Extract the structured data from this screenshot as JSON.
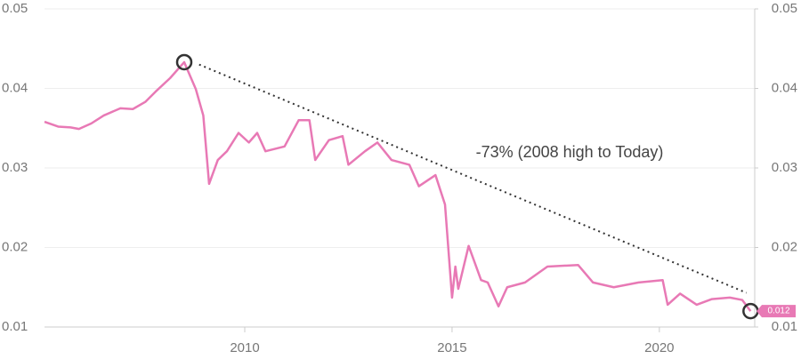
{
  "chart_data": {
    "type": "line",
    "annotation": "-73% (2008 high to Today)",
    "x": [
      2005.17,
      2005.5,
      2005.8,
      2006.0,
      2006.3,
      2006.6,
      2007.0,
      2007.3,
      2007.6,
      2007.85,
      2008.2,
      2008.54,
      2008.82,
      2009.0,
      2009.14,
      2009.35,
      2009.57,
      2009.85,
      2010.1,
      2010.3,
      2010.5,
      2010.96,
      2011.3,
      2011.56,
      2011.7,
      2012.03,
      2012.36,
      2012.5,
      2012.9,
      2013.2,
      2013.54,
      2013.97,
      2014.2,
      2014.6,
      2014.83,
      2015.0,
      2015.08,
      2015.15,
      2015.4,
      2015.7,
      2015.86,
      2016.12,
      2016.33,
      2016.76,
      2017.3,
      2018.04,
      2018.4,
      2018.9,
      2019.5,
      2020.08,
      2020.2,
      2020.5,
      2020.9,
      2021.26,
      2021.7,
      2022.0,
      2022.2
    ],
    "series": [
      {
        "color": "#e879b5",
        "values": [
          0.0358,
          0.0352,
          0.0351,
          0.0349,
          0.0356,
          0.0366,
          0.0375,
          0.0374,
          0.0383,
          0.0396,
          0.0413,
          0.0433,
          0.0399,
          0.0366,
          0.028,
          0.031,
          0.0321,
          0.0344,
          0.0332,
          0.0344,
          0.0321,
          0.0327,
          0.036,
          0.036,
          0.031,
          0.0335,
          0.034,
          0.0304,
          0.0321,
          0.0332,
          0.031,
          0.0304,
          0.0277,
          0.0291,
          0.0254,
          0.0137,
          0.0176,
          0.0148,
          0.0202,
          0.0159,
          0.0156,
          0.0126,
          0.015,
          0.0156,
          0.0176,
          0.0178,
          0.0156,
          0.015,
          0.0156,
          0.0159,
          0.0128,
          0.0142,
          0.0128,
          0.0135,
          0.0137,
          0.0134,
          0.012
        ]
      }
    ],
    "trend_line": {
      "x": [
        2008.9,
        2022.1
      ],
      "y": [
        0.043,
        0.0143
      ]
    },
    "markers": [
      {
        "x": 2008.54,
        "y": 0.0433
      },
      {
        "x": 2022.2,
        "y": 0.012
      }
    ],
    "xlim": [
      2005.17,
      2022.3
    ],
    "xticks": [
      2010,
      2015,
      2020
    ],
    "ylim": [
      0.01,
      0.05
    ],
    "yticks": [
      0.05,
      0.04,
      0.03,
      0.02,
      0.01
    ],
    "y2lim": [
      0.01,
      0.05
    ],
    "y2ticks": [
      0.05,
      0.04,
      0.03,
      0.02,
      0.01
    ],
    "grid": true
  }
}
